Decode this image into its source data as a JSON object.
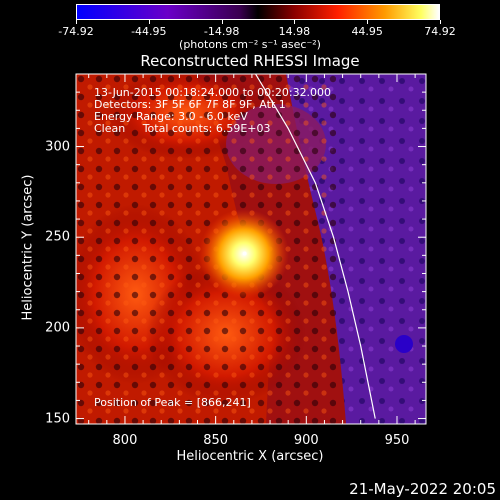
{
  "colorbar": {
    "tick_labels": [
      "-74.92",
      "-44.95",
      "-14.98",
      "14.98",
      "44.95",
      "74.92"
    ],
    "units": "(photons cm⁻² s⁻¹ asec⁻²)"
  },
  "chart_data": {
    "type": "heatmap",
    "title": "Reconstructed RHESSI Image",
    "xlabel": "Heliocentric X (arcsec)",
    "ylabel": "Heliocentric Y (arcsec)",
    "xlim": [
      773,
      966
    ],
    "ylim": [
      147,
      340
    ],
    "x_ticks": [
      800,
      850,
      900,
      950
    ],
    "y_ticks": [
      150,
      200,
      250,
      300
    ],
    "value_range": [
      -74.92,
      74.92
    ],
    "colormap": "rhessi red-temperature",
    "peak": {
      "x": 866,
      "y": 241
    },
    "limb_curve": [
      [
        872,
        340
      ],
      [
        890,
        310
      ],
      [
        905,
        280
      ],
      [
        915,
        250
      ],
      [
        923,
        220
      ],
      [
        930,
        190
      ],
      [
        936,
        160
      ],
      [
        938,
        150
      ]
    ],
    "annotations": [
      "13-Jun-2015 00:18:24.000 to 00:20:32.000",
      "Detectors: 3F 5F 6F 7F 8F 9F, Att 1",
      "Energy Range: 3.0 - 6.0 keV",
      "Clean     Total counts: 6.59E+03",
      "Position of Peak = [866,241]"
    ]
  },
  "footer": {
    "timestamp": "21-May-2022 20:05"
  }
}
